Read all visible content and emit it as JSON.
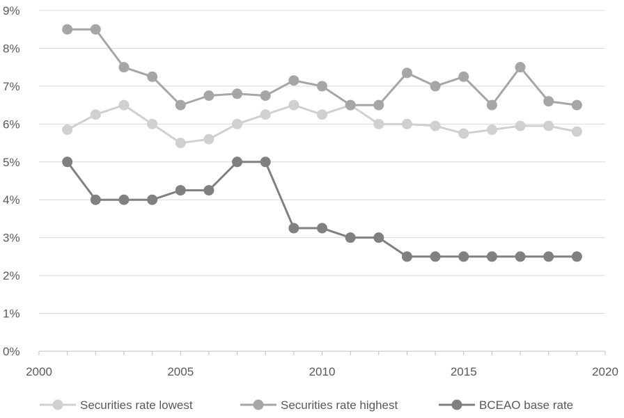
{
  "chart_data": {
    "type": "line",
    "title": "",
    "xlabel": "",
    "ylabel": "",
    "xlim": [
      2000,
      2020
    ],
    "ylim": [
      0,
      9
    ],
    "x_ticks": [
      2000,
      2005,
      2010,
      2015,
      2020
    ],
    "y_ticks": [
      0,
      1,
      2,
      3,
      4,
      5,
      6,
      7,
      8,
      9
    ],
    "x_tick_labels": [
      "2000",
      "2005",
      "2010",
      "2015",
      "2020"
    ],
    "y_tick_labels": [
      "0%",
      "1%",
      "2%",
      "3%",
      "4%",
      "5%",
      "6%",
      "7%",
      "8%",
      "9%"
    ],
    "y_unit": "%",
    "grid": "horizontal",
    "legend_position": "bottom",
    "x": [
      2001,
      2002,
      2003,
      2004,
      2005,
      2006,
      2007,
      2008,
      2009,
      2010,
      2011,
      2012,
      2013,
      2014,
      2015,
      2016,
      2017,
      2018,
      2019
    ],
    "series": [
      {
        "name": "Securities rate lowest",
        "color": "#d0d0d0",
        "values": [
          5.85,
          6.25,
          6.5,
          6.0,
          5.5,
          5.6,
          6.0,
          6.25,
          6.5,
          6.25,
          6.5,
          6.0,
          6.0,
          5.95,
          5.75,
          5.85,
          5.95,
          5.95,
          5.8
        ]
      },
      {
        "name": "Securities rate highest",
        "color": "#a6a6a6",
        "values": [
          8.5,
          8.5,
          7.5,
          7.25,
          6.5,
          6.75,
          6.8,
          6.75,
          7.15,
          7.0,
          6.5,
          6.5,
          7.35,
          7.0,
          7.25,
          6.5,
          7.5,
          6.6,
          6.5
        ]
      },
      {
        "name": "BCEAO base rate",
        "color": "#808080",
        "values": [
          5.0,
          4.0,
          4.0,
          4.0,
          4.25,
          4.25,
          5.0,
          5.0,
          3.25,
          3.25,
          3.0,
          3.0,
          2.5,
          2.5,
          2.5,
          2.5,
          2.5,
          2.5,
          2.5
        ]
      }
    ]
  }
}
